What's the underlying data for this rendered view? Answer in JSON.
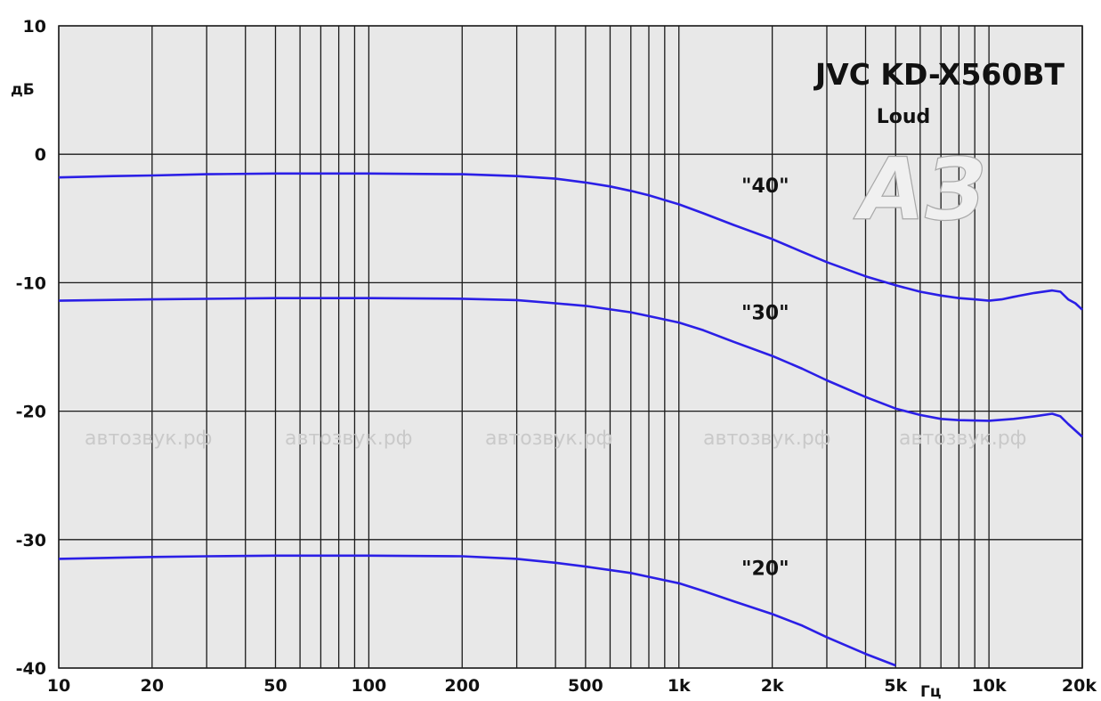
{
  "chart_data": {
    "type": "line",
    "title": "JVC KD-X560BT",
    "subtitle": "Loud",
    "ylabel": "дБ",
    "xlabel": "Гц",
    "xscale": "log",
    "xlim": [
      10,
      20000
    ],
    "ylim": [
      -40,
      10
    ],
    "grid": true,
    "colors": {
      "background": "#e8e8e8",
      "grid": "#1a1a1a",
      "line": "#2b1fe6",
      "watermark": "#cfcfcf"
    },
    "x_ticks": [
      {
        "value": 10,
        "label": "10"
      },
      {
        "value": 20,
        "label": "20"
      },
      {
        "value": 50,
        "label": "50"
      },
      {
        "value": 100,
        "label": "100"
      },
      {
        "value": 200,
        "label": "200"
      },
      {
        "value": 500,
        "label": "500"
      },
      {
        "value": 1000,
        "label": "1k"
      },
      {
        "value": 2000,
        "label": "2k"
      },
      {
        "value": 5000,
        "label": "5k"
      },
      {
        "value": 10000,
        "label": "10k"
      },
      {
        "value": 20000,
        "label": "20k"
      }
    ],
    "y_ticks": [
      {
        "value": 10,
        "label": "10"
      },
      {
        "value": 0,
        "label": "0"
      },
      {
        "value": -10,
        "label": "-10"
      },
      {
        "value": -20,
        "label": "-20"
      },
      {
        "value": -30,
        "label": "-30"
      },
      {
        "value": -40,
        "label": "-40"
      }
    ],
    "series": [
      {
        "name": "\"40\"",
        "label_at": [
          2700,
          -2.4
        ],
        "points": [
          [
            10,
            -1.8
          ],
          [
            15,
            -1.7
          ],
          [
            20,
            -1.65
          ],
          [
            30,
            -1.55
          ],
          [
            50,
            -1.5
          ],
          [
            100,
            -1.5
          ],
          [
            200,
            -1.55
          ],
          [
            300,
            -1.7
          ],
          [
            400,
            -1.9
          ],
          [
            500,
            -2.2
          ],
          [
            600,
            -2.5
          ],
          [
            700,
            -2.85
          ],
          [
            800,
            -3.2
          ],
          [
            1000,
            -3.9
          ],
          [
            1200,
            -4.6
          ],
          [
            1500,
            -5.5
          ],
          [
            2000,
            -6.6
          ],
          [
            2500,
            -7.6
          ],
          [
            3000,
            -8.4
          ],
          [
            4000,
            -9.5
          ],
          [
            5000,
            -10.2
          ],
          [
            6000,
            -10.7
          ],
          [
            7000,
            -11.0
          ],
          [
            8000,
            -11.2
          ],
          [
            9000,
            -11.3
          ],
          [
            10000,
            -11.4
          ],
          [
            11000,
            -11.3
          ],
          [
            12000,
            -11.1
          ],
          [
            14000,
            -10.8
          ],
          [
            16000,
            -10.6
          ],
          [
            17000,
            -10.7
          ],
          [
            18000,
            -11.3
          ],
          [
            19000,
            -11.6
          ],
          [
            20000,
            -12.1
          ]
        ]
      },
      {
        "name": "\"30\"",
        "label_at": [
          2700,
          -12.3
        ],
        "points": [
          [
            10,
            -11.4
          ],
          [
            20,
            -11.3
          ],
          [
            50,
            -11.2
          ],
          [
            100,
            -11.2
          ],
          [
            200,
            -11.25
          ],
          [
            300,
            -11.35
          ],
          [
            400,
            -11.6
          ],
          [
            500,
            -11.8
          ],
          [
            700,
            -12.3
          ],
          [
            800,
            -12.6
          ],
          [
            1000,
            -13.1
          ],
          [
            1200,
            -13.7
          ],
          [
            1500,
            -14.6
          ],
          [
            2000,
            -15.7
          ],
          [
            2500,
            -16.7
          ],
          [
            3000,
            -17.6
          ],
          [
            4000,
            -18.9
          ],
          [
            5000,
            -19.8
          ],
          [
            6000,
            -20.3
          ],
          [
            7000,
            -20.6
          ],
          [
            8000,
            -20.7
          ],
          [
            10000,
            -20.75
          ],
          [
            12000,
            -20.6
          ],
          [
            14000,
            -20.4
          ],
          [
            16000,
            -20.2
          ],
          [
            17000,
            -20.4
          ],
          [
            18000,
            -21.0
          ],
          [
            20000,
            -22.0
          ]
        ]
      },
      {
        "name": "\"20\"",
        "label_at": [
          2700,
          -32.2
        ],
        "points": [
          [
            10,
            -31.5
          ],
          [
            20,
            -31.35
          ],
          [
            30,
            -31.3
          ],
          [
            50,
            -31.25
          ],
          [
            100,
            -31.25
          ],
          [
            200,
            -31.3
          ],
          [
            300,
            -31.5
          ],
          [
            400,
            -31.8
          ],
          [
            500,
            -32.1
          ],
          [
            700,
            -32.6
          ],
          [
            800,
            -32.9
          ],
          [
            1000,
            -33.4
          ],
          [
            1200,
            -34.0
          ],
          [
            1500,
            -34.8
          ],
          [
            2000,
            -35.8
          ],
          [
            2500,
            -36.7
          ],
          [
            3000,
            -37.6
          ],
          [
            4000,
            -38.9
          ],
          [
            5000,
            -39.8
          ]
        ]
      }
    ]
  },
  "watermark": {
    "text": "автозвук.рф",
    "logo_text": "АЗ"
  }
}
